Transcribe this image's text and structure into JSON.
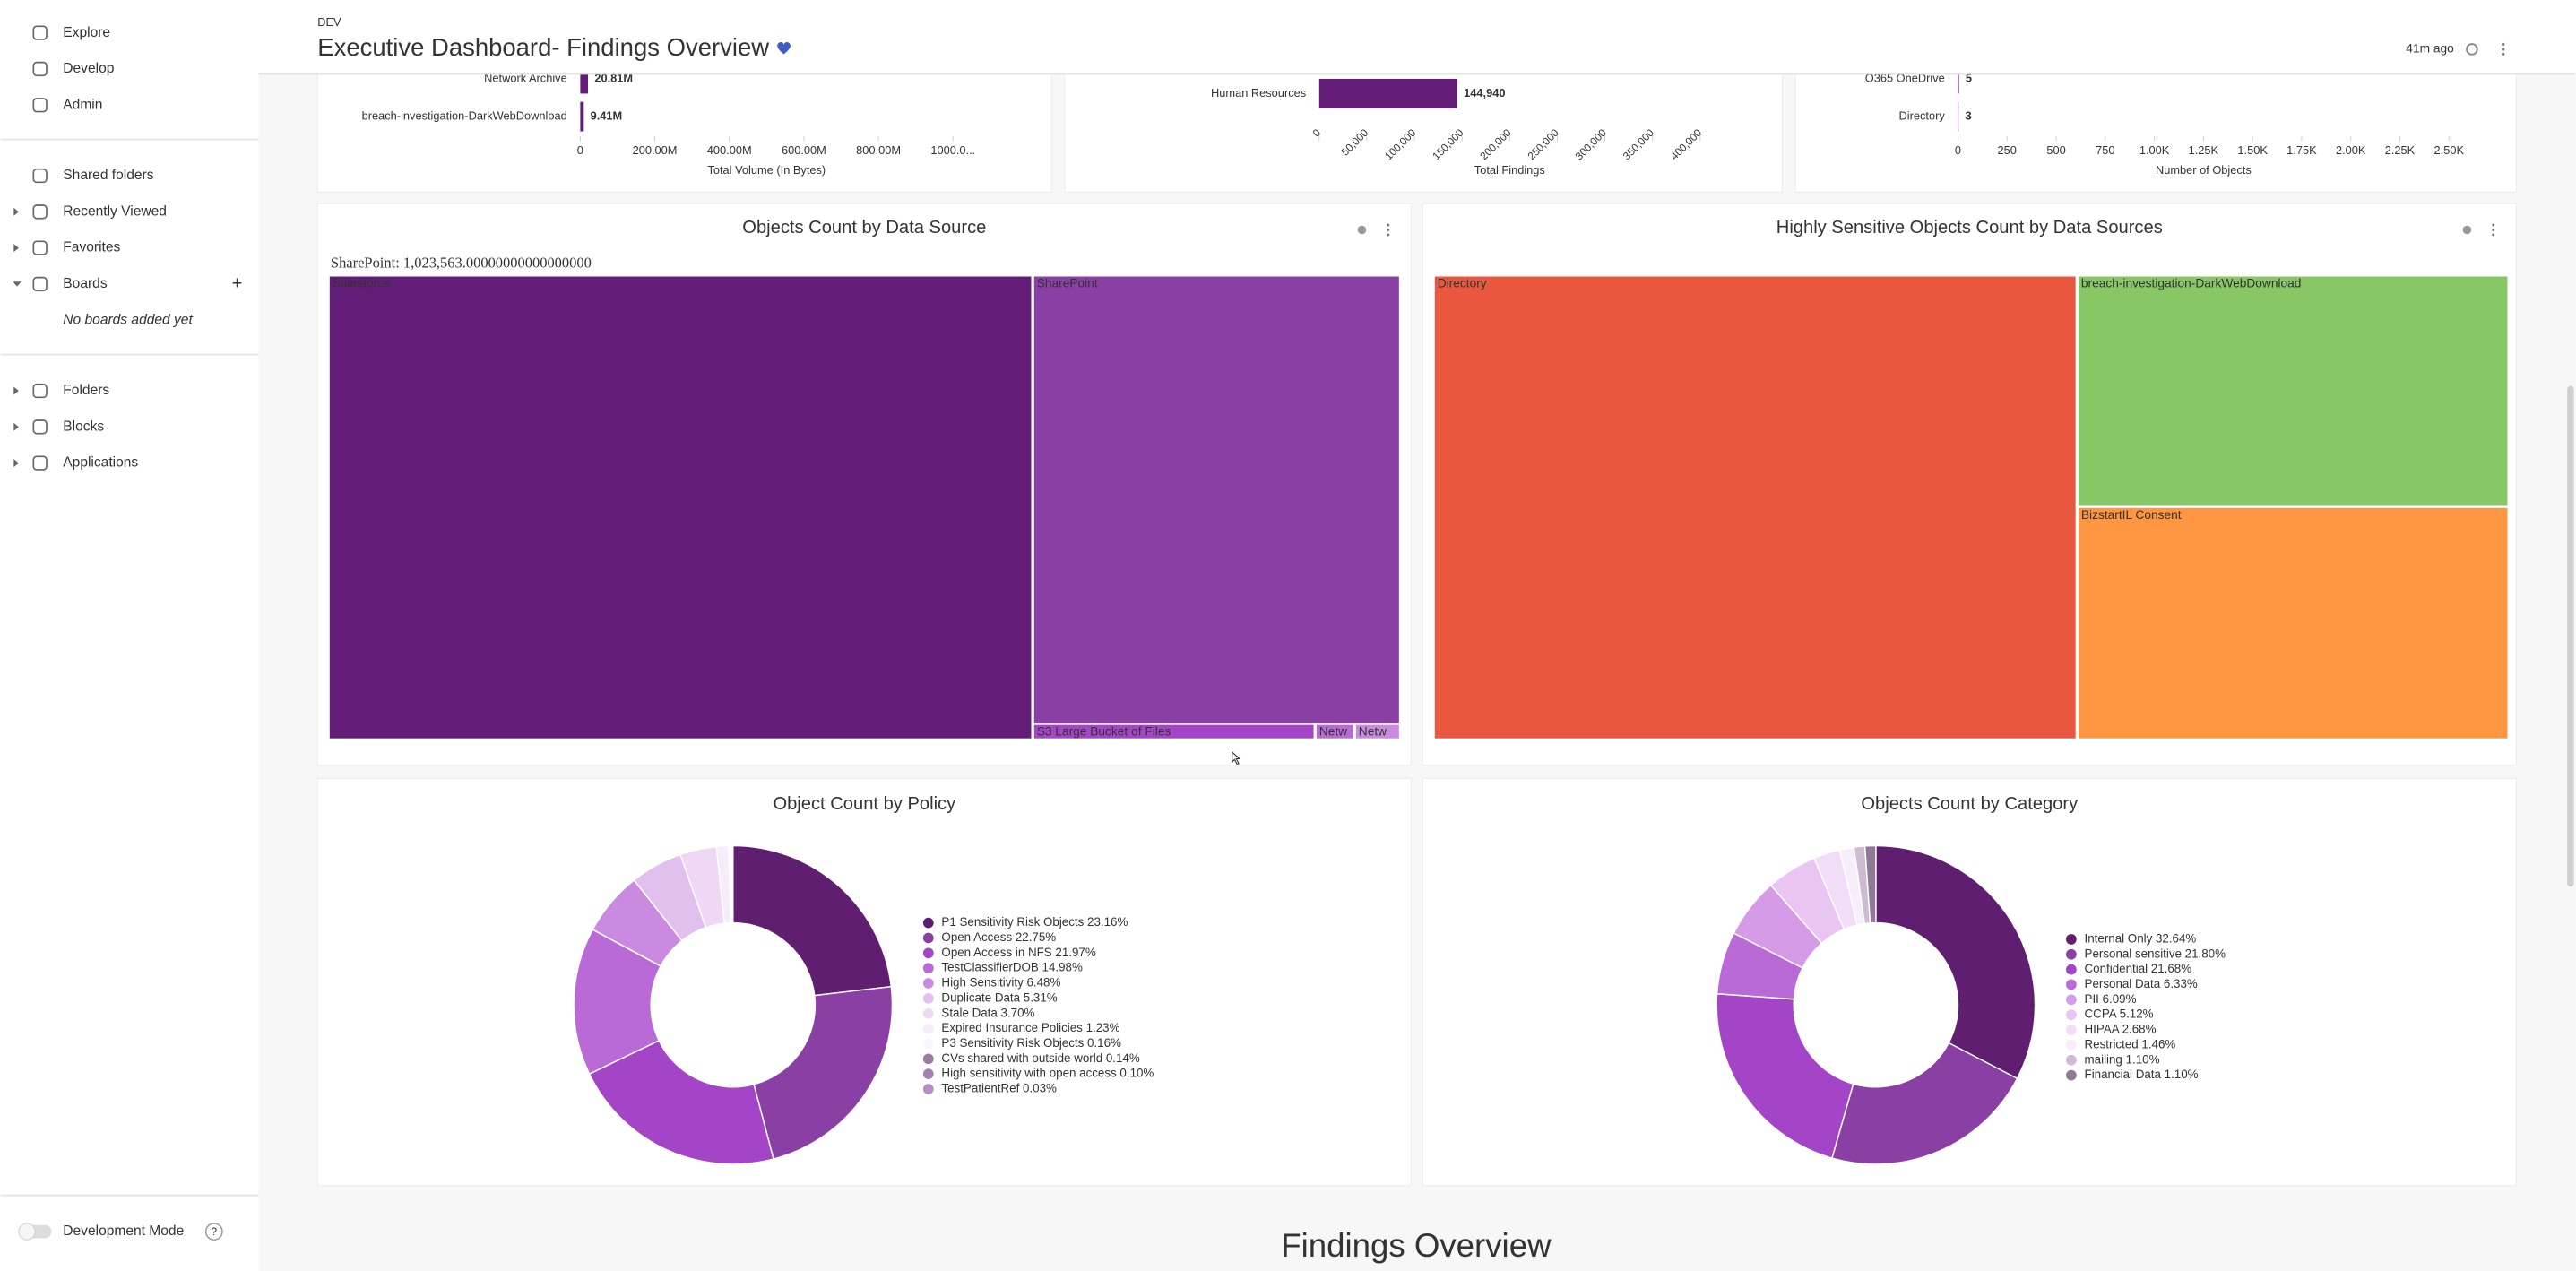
{
  "sidebar": {
    "nav": [
      "Explore",
      "Develop",
      "Admin"
    ],
    "sections": [
      "Shared folders",
      "Recently Viewed",
      "Favorites",
      "Boards"
    ],
    "boards_empty": "No boards added yet",
    "more": [
      "Folders",
      "Blocks",
      "Applications"
    ],
    "dev_mode": "Development Mode"
  },
  "header": {
    "env": "DEV",
    "title": "Executive Dashboard- Findings Overview",
    "updated": "41m ago"
  },
  "chart_data": [
    {
      "type": "hbar",
      "categories": [
        "Network Archive",
        "breach-investigation-DarkWebDownload"
      ],
      "values": [
        20810000,
        9410000
      ],
      "value_labels": [
        "20.81M",
        "9.41M"
      ],
      "color": "#631c78",
      "xlim": [
        0,
        1000000000
      ],
      "xticks": [
        0,
        {
          "value": 200000000,
          "label": "200.00M"
        },
        {
          "value": 400000000,
          "label": "400.00M"
        },
        {
          "value": 600000000,
          "label": "600.00M"
        },
        {
          "value": 800000000,
          "label": "800.00M"
        },
        {
          "value": 1000000000,
          "label": "1000.0..."
        }
      ],
      "xlabel": "Total Volume (In Bytes)"
    },
    {
      "type": "hbar",
      "categories": [
        "Human Resources"
      ],
      "values": [
        144940
      ],
      "value_labels": [
        "144,940"
      ],
      "color": "#631c78",
      "xlim": [
        0,
        400000
      ],
      "xticks": [
        0,
        {
          "value": 50000,
          "label": "50,000"
        },
        {
          "value": 100000,
          "label": "100,000"
        },
        {
          "value": 150000,
          "label": "150,000"
        },
        {
          "value": 200000,
          "label": "200,000"
        },
        {
          "value": 250000,
          "label": "250,000"
        },
        {
          "value": 300000,
          "label": "300,000"
        },
        {
          "value": 350000,
          "label": "350,000"
        },
        {
          "value": 400000,
          "label": "400,000"
        }
      ],
      "xlabel": "Total Findings"
    },
    {
      "type": "hbar",
      "categories": [
        "O365 OneDrive",
        "Directory"
      ],
      "values": [
        5,
        3
      ],
      "color": "#631c78",
      "xlim": [
        0,
        2500
      ],
      "xticks": [
        0,
        250,
        500,
        750,
        {
          "value": 1000,
          "label": "1.00K"
        },
        {
          "value": 1250,
          "label": "1.25K"
        },
        {
          "value": 1500,
          "label": "1.50K"
        },
        {
          "value": 1750,
          "label": "1.75K"
        },
        {
          "value": 2000,
          "label": "2.00K"
        },
        {
          "value": 2250,
          "label": "2.25K"
        },
        {
          "value": 2500,
          "label": "2.50K"
        }
      ],
      "xlabel": "Number of Objects"
    },
    {
      "type": "treemap",
      "title": "Objects Count by Data Source",
      "tooltip": "SharePoint: 1,023,563.00000000000000000",
      "cells": [
        {
          "label": "Salesforce",
          "color": "#631c78"
        },
        {
          "label": "SharePoint",
          "color": "#8a3fa4"
        },
        {
          "label": "S3 Large Bucket of Files",
          "color": "#a345c6"
        },
        {
          "label": "Netw",
          "color": "#b96ad6"
        },
        {
          "label": "Netw",
          "color": "#c98ae0"
        }
      ]
    },
    {
      "type": "treemap",
      "title": "Highly Sensitive Objects Count by Data Sources",
      "cells": [
        {
          "label": "Directory",
          "color": "#e9573f"
        },
        {
          "label": "breach-investigation-DarkWebDownload",
          "color": "#88c765"
        },
        {
          "label": "BizstartIL Consent",
          "color": "#fd9541"
        }
      ]
    },
    {
      "type": "donut",
      "title": "Object Count by Policy",
      "slices": [
        {
          "label": "P1 Sensitivity Risk Objects 23.16%",
          "value": 23.16,
          "color": "#5f1e6f"
        },
        {
          "label": "Open Access 22.75%",
          "value": 22.75,
          "color": "#8a3fa4"
        },
        {
          "label": "Open Access in NFS 21.97%",
          "value": 21.97,
          "color": "#a345c6"
        },
        {
          "label": "TestClassifierDOB 14.98%",
          "value": 14.98,
          "color": "#b96ad6"
        },
        {
          "label": "High Sensitivity 6.48%",
          "value": 6.48,
          "color": "#c98ae0"
        },
        {
          "label": "Duplicate Data 5.31%",
          "value": 5.31,
          "color": "#e2c0ee"
        },
        {
          "label": "Stale Data 3.70%",
          "value": 3.7,
          "color": "#eed8f5"
        },
        {
          "label": "Expired Insurance Policies 1.23%",
          "value": 1.23,
          "color": "#f6ecfa"
        },
        {
          "label": "P3 Sensitivity Risk Objects 0.16%",
          "value": 0.16,
          "color": "#fbf5fd"
        },
        {
          "label": "CVs shared with outside world 0.14%",
          "value": 0.14,
          "color": "#9b7aa6"
        },
        {
          "label": "High sensitivity with open access 0.10%",
          "value": 0.1,
          "color": "#a67fb6"
        },
        {
          "label": "TestPatientRef 0.03%",
          "value": 0.03,
          "color": "#b98cc8"
        }
      ]
    },
    {
      "type": "donut",
      "title": "Objects Count by Category",
      "slices": [
        {
          "label": "Internal Only 32.64%",
          "value": 32.64,
          "color": "#5f1e6f"
        },
        {
          "label": "Personal sensitive 21.80%",
          "value": 21.8,
          "color": "#8a3fa4"
        },
        {
          "label": "Confidential 21.68%",
          "value": 21.68,
          "color": "#a345c6"
        },
        {
          "label": "Personal Data 6.33%",
          "value": 6.33,
          "color": "#b96ad6"
        },
        {
          "label": "PII 6.09%",
          "value": 6.09,
          "color": "#d69be6"
        },
        {
          "label": "CCPA 5.12%",
          "value": 5.12,
          "color": "#e8c6f1"
        },
        {
          "label": "HIPAA 2.68%",
          "value": 2.68,
          "color": "#f1ddf7"
        },
        {
          "label": "Restricted 1.46%",
          "value": 1.46,
          "color": "#f7eefb"
        },
        {
          "label": "mailing 1.10%",
          "value": 1.1,
          "color": "#cdbbd2"
        },
        {
          "label": "Financial Data 1.10%",
          "value": 1.1,
          "color": "#8e7a92"
        }
      ]
    }
  ],
  "section_title": "Findings Overview"
}
